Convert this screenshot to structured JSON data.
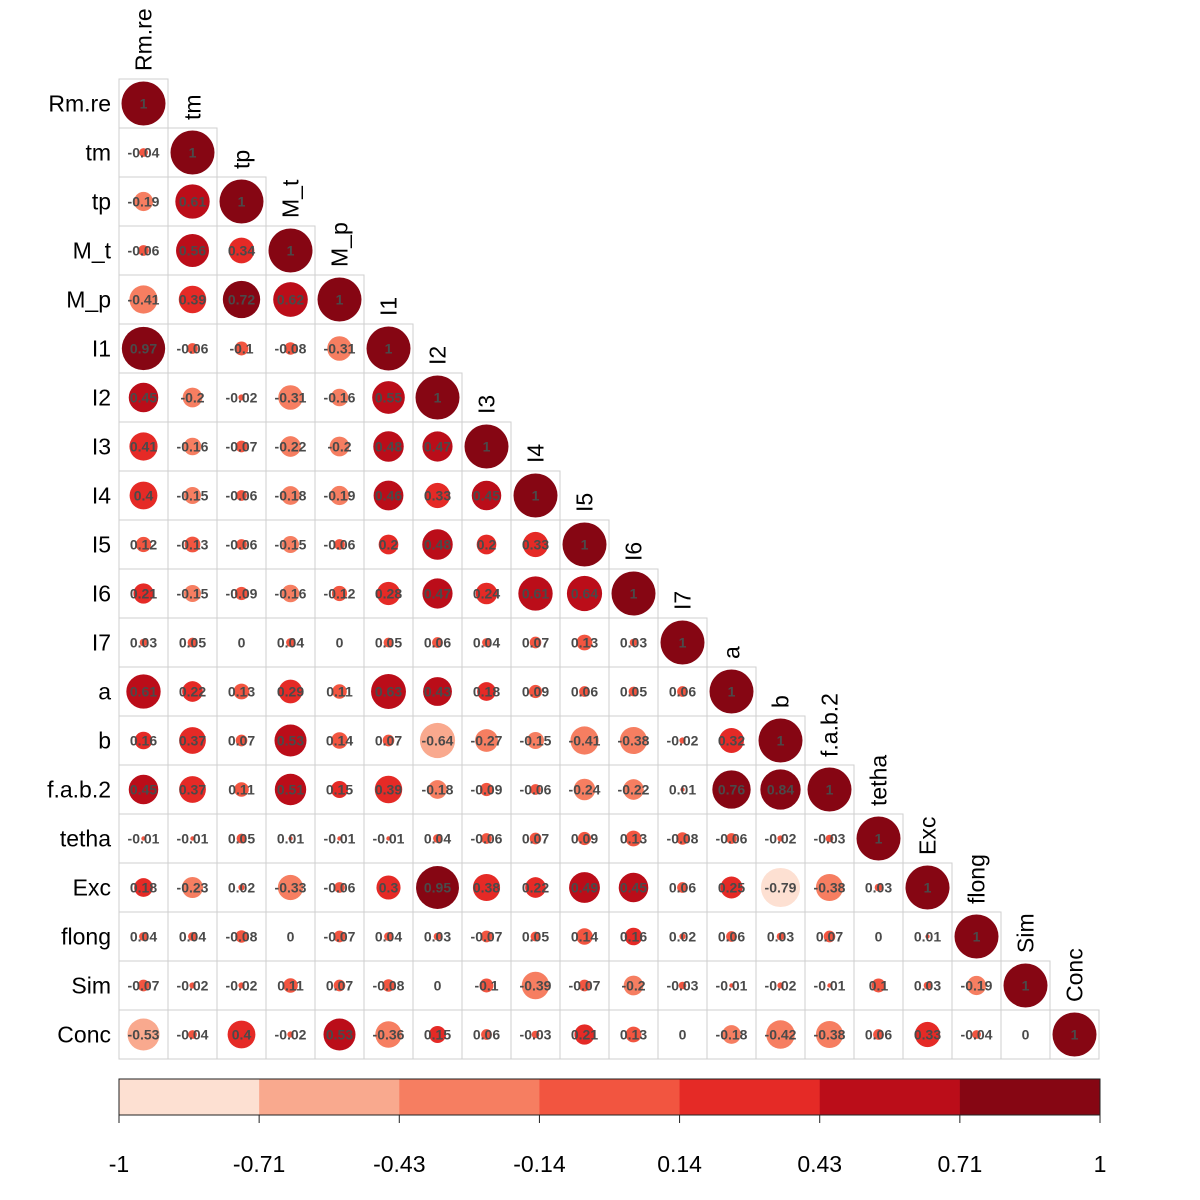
{
  "chart_data": {
    "type": "heatmap",
    "variables": [
      "Rm.re",
      "tm",
      "tp",
      "M_t",
      "M_p",
      "I1",
      "I2",
      "I3",
      "I4",
      "I5",
      "I6",
      "I7",
      "a",
      "b",
      "f.a.b.2",
      "tetha",
      "Exc",
      "flong",
      "Sim",
      "Conc"
    ],
    "matrix_lower": [
      [
        1
      ],
      [
        -0.04,
        1
      ],
      [
        -0.19,
        0.61,
        1
      ],
      [
        -0.06,
        0.56,
        0.34,
        1
      ],
      [
        -0.41,
        0.39,
        0.72,
        0.62,
        1
      ],
      [
        0.97,
        -0.06,
        -0.1,
        -0.08,
        -0.31,
        1
      ],
      [
        0.45,
        -0.2,
        -0.02,
        -0.31,
        -0.16,
        0.55,
        1
      ],
      [
        0.41,
        -0.16,
        -0.07,
        -0.22,
        -0.2,
        0.48,
        0.47,
        1
      ],
      [
        0.4,
        -0.15,
        -0.06,
        -0.18,
        -0.19,
        0.46,
        0.33,
        0.45,
        1
      ],
      [
        0.12,
        -0.13,
        -0.06,
        -0.15,
        -0.06,
        0.2,
        0.48,
        0.2,
        0.33,
        1
      ],
      [
        0.21,
        -0.15,
        -0.09,
        -0.16,
        -0.12,
        0.28,
        0.47,
        0.24,
        0.61,
        0.64,
        1
      ],
      [
        0.03,
        0.05,
        0,
        0.04,
        0,
        0.05,
        0.06,
        0.04,
        0.07,
        0.13,
        0.03,
        1
      ],
      [
        0.61,
        0.22,
        0.13,
        0.29,
        0.11,
        0.63,
        0.43,
        0.18,
        0.09,
        0.06,
        0.05,
        0.06,
        1
      ],
      [
        0.16,
        0.37,
        0.07,
        0.53,
        0.14,
        0.07,
        -0.64,
        -0.27,
        -0.15,
        -0.41,
        -0.38,
        -0.02,
        0.32,
        1
      ],
      [
        0.45,
        0.37,
        0.11,
        0.51,
        0.15,
        0.39,
        -0.18,
        -0.09,
        -0.06,
        -0.24,
        -0.22,
        0.01,
        0.76,
        0.84,
        1
      ],
      [
        -0.01,
        -0.01,
        0.05,
        0.01,
        -0.01,
        -0.01,
        0.04,
        -0.06,
        0.07,
        0.09,
        0.13,
        -0.08,
        -0.06,
        -0.02,
        -0.03,
        1
      ],
      [
        0.18,
        -0.23,
        0.02,
        -0.33,
        -0.06,
        0.3,
        0.95,
        0.38,
        0.22,
        0.49,
        0.45,
        0.06,
        0.25,
        -0.79,
        -0.38,
        0.03,
        1
      ],
      [
        0.04,
        0.04,
        -0.08,
        0,
        -0.07,
        0.04,
        0.03,
        -0.07,
        0.05,
        0.14,
        0.16,
        0.02,
        0.06,
        0.03,
        0.07,
        0,
        0.01,
        1
      ],
      [
        -0.07,
        -0.02,
        -0.02,
        0.11,
        0.07,
        -0.08,
        0,
        -0.1,
        -0.39,
        -0.07,
        -0.2,
        -0.03,
        -0.01,
        -0.02,
        -0.01,
        0.1,
        0.03,
        -0.19,
        1
      ],
      [
        -0.53,
        -0.04,
        0.4,
        -0.02,
        0.53,
        -0.36,
        0.15,
        0.06,
        -0.03,
        0.21,
        0.13,
        0,
        -0.18,
        -0.42,
        -0.38,
        0.06,
        0.33,
        -0.04,
        0,
        1
      ]
    ],
    "colorbar": {
      "ticks": [
        "-1",
        "-0.71",
        "-0.43",
        "-0.14",
        "0.14",
        "0.43",
        "0.71",
        "1"
      ],
      "colors": [
        "#FDE0D2",
        "#F9A98E",
        "#F67E61",
        "#F25540",
        "#E52A26",
        "#BB0D19",
        "#860613"
      ]
    },
    "range": [
      -1,
      1
    ]
  }
}
